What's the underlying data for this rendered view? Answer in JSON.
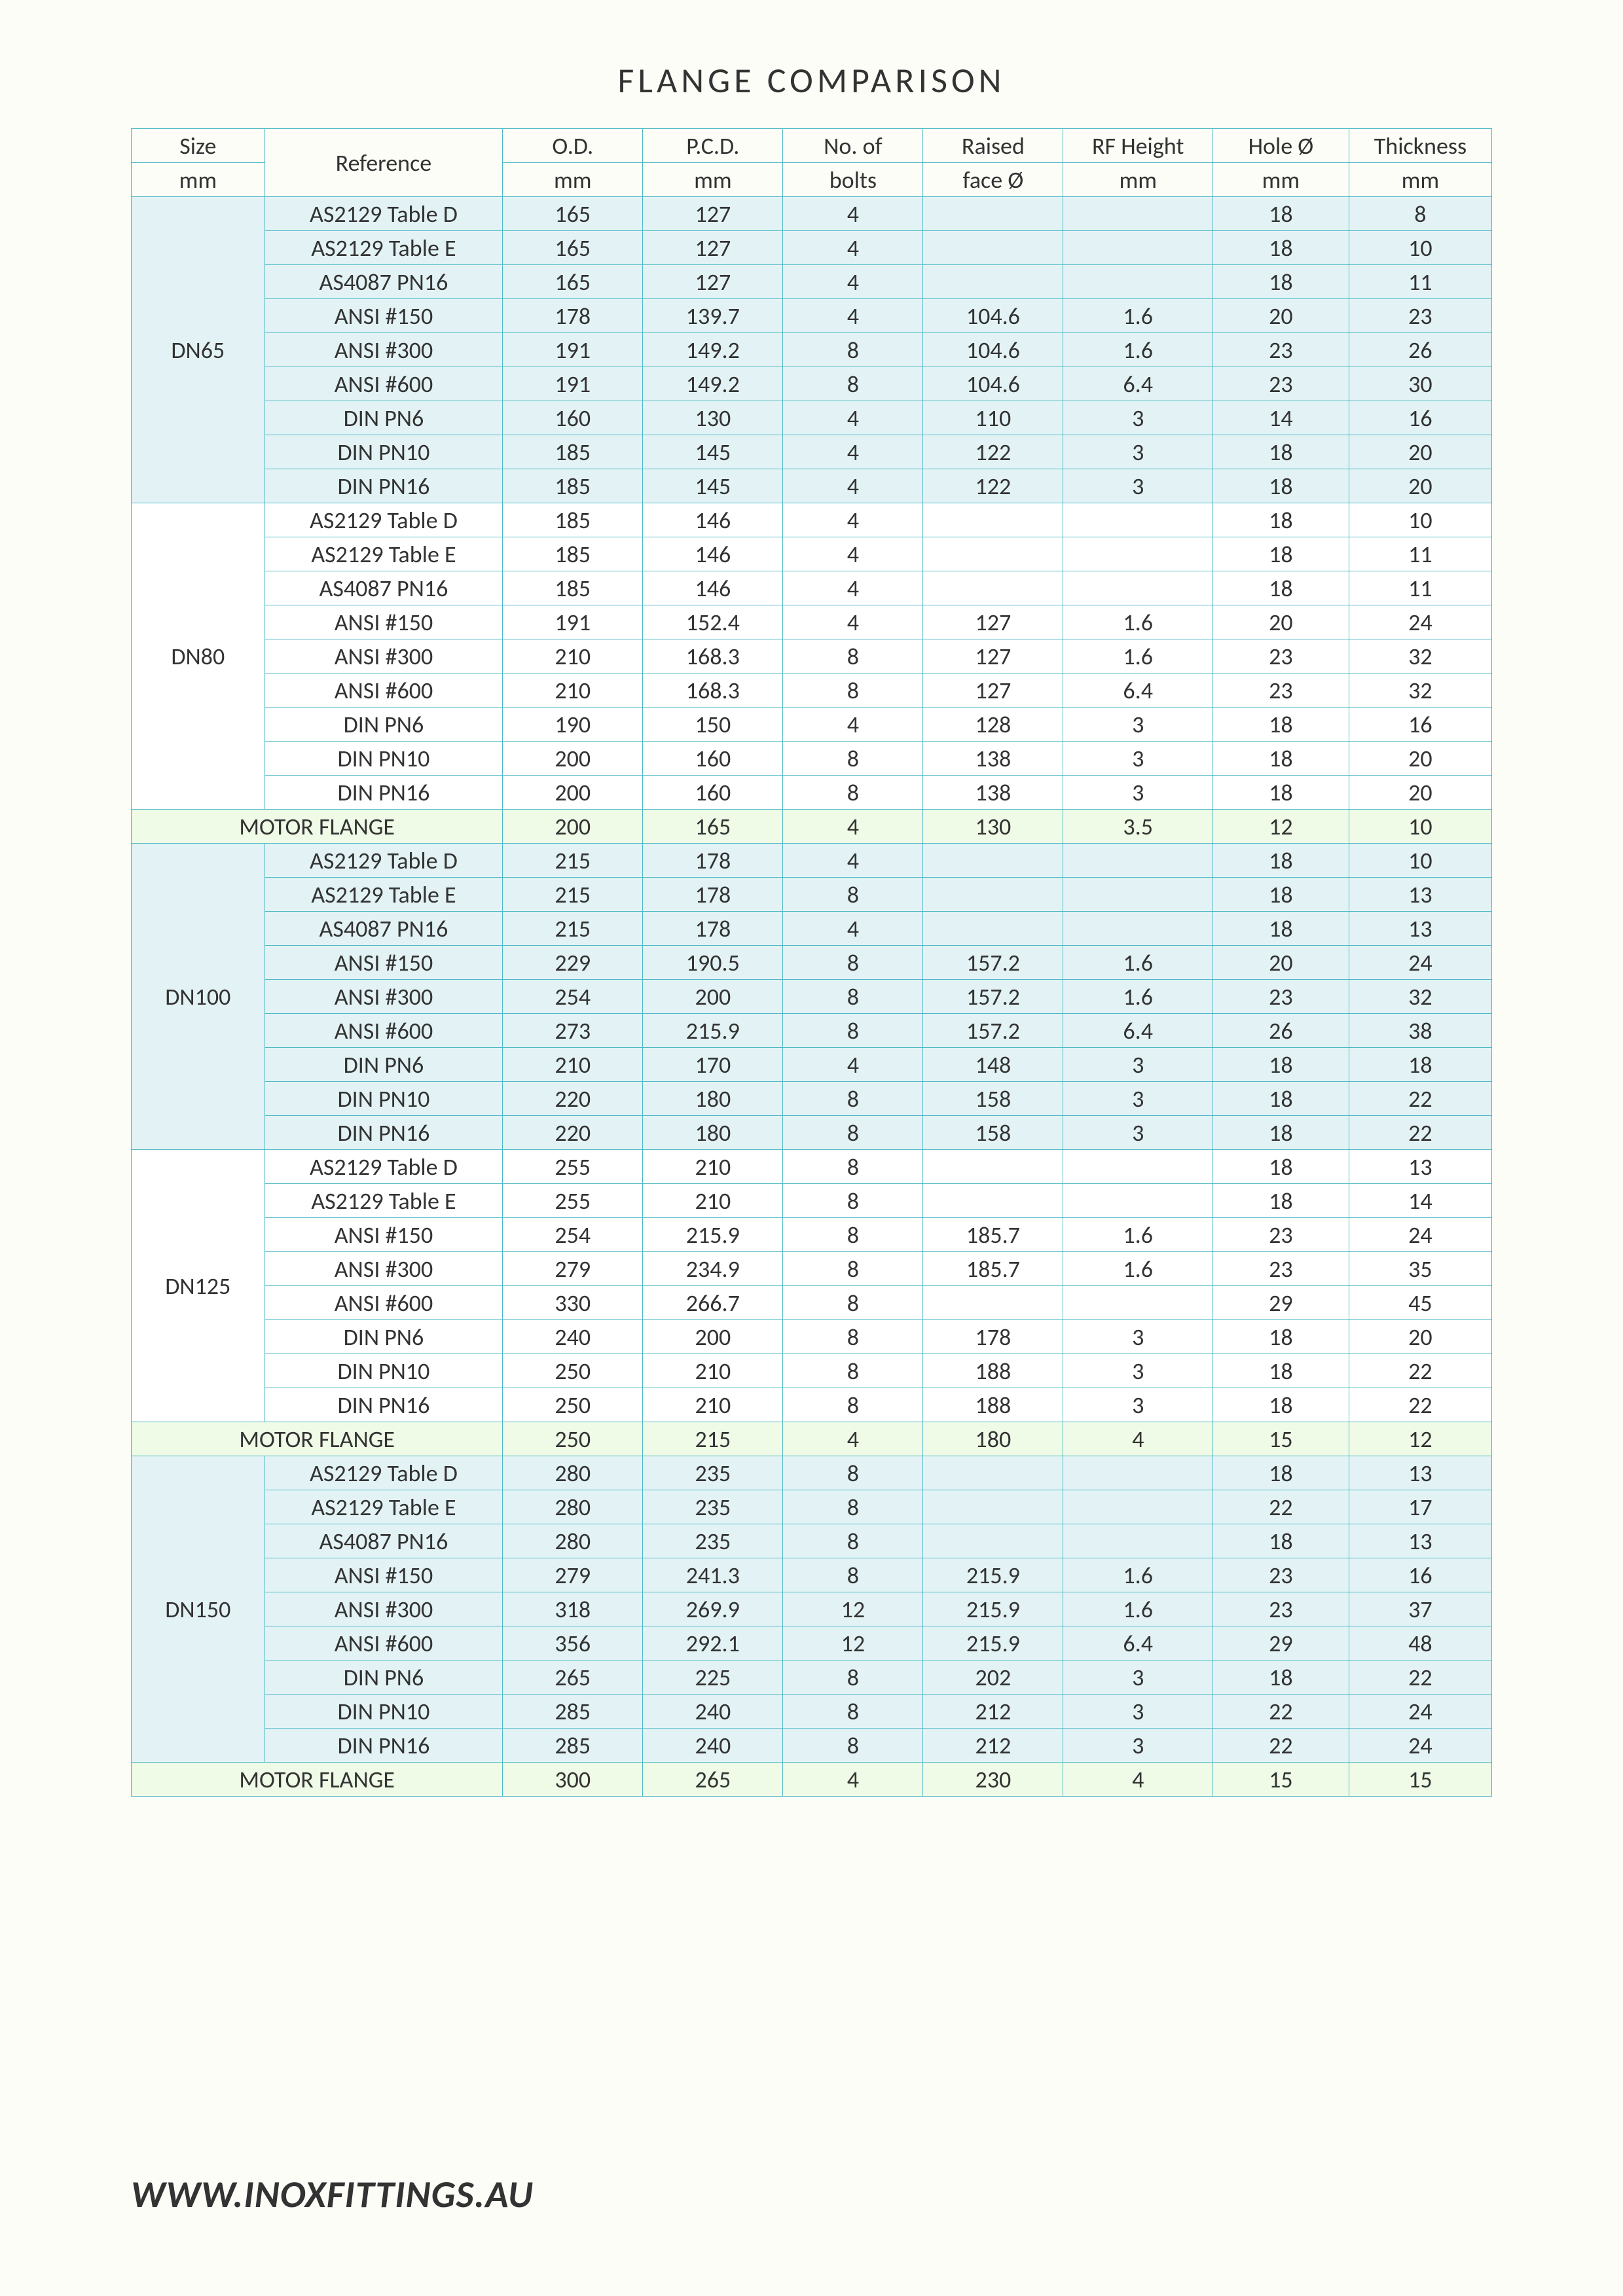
{
  "title": "FLANGE  COMPARISON",
  "footer": "WWW.INOXFITTINGS.AU",
  "colors": {
    "border": "#4db8c7",
    "background": "#fcfdf7",
    "shade_blue": "#e3f3f5",
    "shade_white": "#ffffff",
    "shade_green": "#effbe7",
    "text": "#333333"
  },
  "header": {
    "size1": "Size",
    "size2": "mm",
    "ref": "Reference",
    "od1": "O.D.",
    "od2": "mm",
    "pcd1": "P.C.D.",
    "pcd2": "mm",
    "bolts1": "No. of",
    "bolts2": "bolts",
    "rf1": "Raised",
    "rf2": "face Ø",
    "rfh1": "RF Height",
    "rfh2": "mm",
    "hole1": "Hole Ø",
    "hole2": "mm",
    "thk1": "Thickness",
    "thk2": "mm"
  },
  "groups": [
    {
      "size": "DN65",
      "shade": "blue",
      "rows": [
        {
          "ref": "AS2129 Table D",
          "od": "165",
          "pcd": "127",
          "bolts": "4",
          "rf": "",
          "rfh": "",
          "hole": "18",
          "thk": "8"
        },
        {
          "ref": "AS2129 Table E",
          "od": "165",
          "pcd": "127",
          "bolts": "4",
          "rf": "",
          "rfh": "",
          "hole": "18",
          "thk": "10"
        },
        {
          "ref": "AS4087 PN16",
          "od": "165",
          "pcd": "127",
          "bolts": "4",
          "rf": "",
          "rfh": "",
          "hole": "18",
          "thk": "11"
        },
        {
          "ref": "ANSI #150",
          "od": "178",
          "pcd": "139.7",
          "bolts": "4",
          "rf": "104.6",
          "rfh": "1.6",
          "hole": "20",
          "thk": "23"
        },
        {
          "ref": "ANSI #300",
          "od": "191",
          "pcd": "149.2",
          "bolts": "8",
          "rf": "104.6",
          "rfh": "1.6",
          "hole": "23",
          "thk": "26"
        },
        {
          "ref": "ANSI #600",
          "od": "191",
          "pcd": "149.2",
          "bolts": "8",
          "rf": "104.6",
          "rfh": "6.4",
          "hole": "23",
          "thk": "30"
        },
        {
          "ref": "DIN PN6",
          "od": "160",
          "pcd": "130",
          "bolts": "4",
          "rf": "110",
          "rfh": "3",
          "hole": "14",
          "thk": "16"
        },
        {
          "ref": "DIN PN10",
          "od": "185",
          "pcd": "145",
          "bolts": "4",
          "rf": "122",
          "rfh": "3",
          "hole": "18",
          "thk": "20"
        },
        {
          "ref": "DIN PN16",
          "od": "185",
          "pcd": "145",
          "bolts": "4",
          "rf": "122",
          "rfh": "3",
          "hole": "18",
          "thk": "20"
        }
      ]
    },
    {
      "size": "DN80",
      "shade": "white",
      "rows": [
        {
          "ref": "AS2129 Table D",
          "od": "185",
          "pcd": "146",
          "bolts": "4",
          "rf": "",
          "rfh": "",
          "hole": "18",
          "thk": "10"
        },
        {
          "ref": "AS2129 Table E",
          "od": "185",
          "pcd": "146",
          "bolts": "4",
          "rf": "",
          "rfh": "",
          "hole": "18",
          "thk": "11"
        },
        {
          "ref": "AS4087 PN16",
          "od": "185",
          "pcd": "146",
          "bolts": "4",
          "rf": "",
          "rfh": "",
          "hole": "18",
          "thk": "11"
        },
        {
          "ref": "ANSI #150",
          "od": "191",
          "pcd": "152.4",
          "bolts": "4",
          "rf": "127",
          "rfh": "1.6",
          "hole": "20",
          "thk": "24"
        },
        {
          "ref": "ANSI #300",
          "od": "210",
          "pcd": "168.3",
          "bolts": "8",
          "rf": "127",
          "rfh": "1.6",
          "hole": "23",
          "thk": "32"
        },
        {
          "ref": "ANSI #600",
          "od": "210",
          "pcd": "168.3",
          "bolts": "8",
          "rf": "127",
          "rfh": "6.4",
          "hole": "23",
          "thk": "32"
        },
        {
          "ref": "DIN PN6",
          "od": "190",
          "pcd": "150",
          "bolts": "4",
          "rf": "128",
          "rfh": "3",
          "hole": "18",
          "thk": "16"
        },
        {
          "ref": "DIN PN10",
          "od": "200",
          "pcd": "160",
          "bolts": "8",
          "rf": "138",
          "rfh": "3",
          "hole": "18",
          "thk": "20"
        },
        {
          "ref": "DIN PN16",
          "od": "200",
          "pcd": "160",
          "bolts": "8",
          "rf": "138",
          "rfh": "3",
          "hole": "18",
          "thk": "20"
        }
      ]
    },
    {
      "motor": true,
      "shade": "green",
      "label": "MOTOR  FLANGE",
      "row": {
        "od": "200",
        "pcd": "165",
        "bolts": "4",
        "rf": "130",
        "rfh": "3.5",
        "hole": "12",
        "thk": "10"
      }
    },
    {
      "size": "DN100",
      "shade": "blue",
      "rows": [
        {
          "ref": "AS2129 Table D",
          "od": "215",
          "pcd": "178",
          "bolts": "4",
          "rf": "",
          "rfh": "",
          "hole": "18",
          "thk": "10"
        },
        {
          "ref": "AS2129 Table E",
          "od": "215",
          "pcd": "178",
          "bolts": "8",
          "rf": "",
          "rfh": "",
          "hole": "18",
          "thk": "13"
        },
        {
          "ref": "AS4087 PN16",
          "od": "215",
          "pcd": "178",
          "bolts": "4",
          "rf": "",
          "rfh": "",
          "hole": "18",
          "thk": "13"
        },
        {
          "ref": "ANSI #150",
          "od": "229",
          "pcd": "190.5",
          "bolts": "8",
          "rf": "157.2",
          "rfh": "1.6",
          "hole": "20",
          "thk": "24"
        },
        {
          "ref": "ANSI #300",
          "od": "254",
          "pcd": "200",
          "bolts": "8",
          "rf": "157.2",
          "rfh": "1.6",
          "hole": "23",
          "thk": "32"
        },
        {
          "ref": "ANSI #600",
          "od": "273",
          "pcd": "215.9",
          "bolts": "8",
          "rf": "157.2",
          "rfh": "6.4",
          "hole": "26",
          "thk": "38"
        },
        {
          "ref": "DIN PN6",
          "od": "210",
          "pcd": "170",
          "bolts": "4",
          "rf": "148",
          "rfh": "3",
          "hole": "18",
          "thk": "18"
        },
        {
          "ref": "DIN PN10",
          "od": "220",
          "pcd": "180",
          "bolts": "8",
          "rf": "158",
          "rfh": "3",
          "hole": "18",
          "thk": "22"
        },
        {
          "ref": "DIN PN16",
          "od": "220",
          "pcd": "180",
          "bolts": "8",
          "rf": "158",
          "rfh": "3",
          "hole": "18",
          "thk": "22"
        }
      ]
    },
    {
      "size": "DN125",
      "shade": "white",
      "rows": [
        {
          "ref": "AS2129 Table D",
          "od": "255",
          "pcd": "210",
          "bolts": "8",
          "rf": "",
          "rfh": "",
          "hole": "18",
          "thk": "13"
        },
        {
          "ref": "AS2129 Table E",
          "od": "255",
          "pcd": "210",
          "bolts": "8",
          "rf": "",
          "rfh": "",
          "hole": "18",
          "thk": "14"
        },
        {
          "ref": "ANSI #150",
          "od": "254",
          "pcd": "215.9",
          "bolts": "8",
          "rf": "185.7",
          "rfh": "1.6",
          "hole": "23",
          "thk": "24"
        },
        {
          "ref": "ANSI #300",
          "od": "279",
          "pcd": "234.9",
          "bolts": "8",
          "rf": "185.7",
          "rfh": "1.6",
          "hole": "23",
          "thk": "35"
        },
        {
          "ref": "ANSI #600",
          "od": "330",
          "pcd": "266.7",
          "bolts": "8",
          "rf": "",
          "rfh": "",
          "hole": "29",
          "thk": "45"
        },
        {
          "ref": "DIN PN6",
          "od": "240",
          "pcd": "200",
          "bolts": "8",
          "rf": "178",
          "rfh": "3",
          "hole": "18",
          "thk": "20"
        },
        {
          "ref": "DIN PN10",
          "od": "250",
          "pcd": "210",
          "bolts": "8",
          "rf": "188",
          "rfh": "3",
          "hole": "18",
          "thk": "22"
        },
        {
          "ref": "DIN PN16",
          "od": "250",
          "pcd": "210",
          "bolts": "8",
          "rf": "188",
          "rfh": "3",
          "hole": "18",
          "thk": "22"
        }
      ]
    },
    {
      "motor": true,
      "shade": "green",
      "label": "MOTOR  FLANGE",
      "row": {
        "od": "250",
        "pcd": "215",
        "bolts": "4",
        "rf": "180",
        "rfh": "4",
        "hole": "15",
        "thk": "12"
      }
    },
    {
      "size": "DN150",
      "shade": "blue",
      "rows": [
        {
          "ref": "AS2129 Table D",
          "od": "280",
          "pcd": "235",
          "bolts": "8",
          "rf": "",
          "rfh": "",
          "hole": "18",
          "thk": "13"
        },
        {
          "ref": "AS2129 Table E",
          "od": "280",
          "pcd": "235",
          "bolts": "8",
          "rf": "",
          "rfh": "",
          "hole": "22",
          "thk": "17"
        },
        {
          "ref": "AS4087 PN16",
          "od": "280",
          "pcd": "235",
          "bolts": "8",
          "rf": "",
          "rfh": "",
          "hole": "18",
          "thk": "13"
        },
        {
          "ref": "ANSI #150",
          "od": "279",
          "pcd": "241.3",
          "bolts": "8",
          "rf": "215.9",
          "rfh": "1.6",
          "hole": "23",
          "thk": "16"
        },
        {
          "ref": "ANSI #300",
          "od": "318",
          "pcd": "269.9",
          "bolts": "12",
          "rf": "215.9",
          "rfh": "1.6",
          "hole": "23",
          "thk": "37"
        },
        {
          "ref": "ANSI #600",
          "od": "356",
          "pcd": "292.1",
          "bolts": "12",
          "rf": "215.9",
          "rfh": "6.4",
          "hole": "29",
          "thk": "48"
        },
        {
          "ref": "DIN PN6",
          "od": "265",
          "pcd": "225",
          "bolts": "8",
          "rf": "202",
          "rfh": "3",
          "hole": "18",
          "thk": "22"
        },
        {
          "ref": "DIN PN10",
          "od": "285",
          "pcd": "240",
          "bolts": "8",
          "rf": "212",
          "rfh": "3",
          "hole": "22",
          "thk": "24"
        },
        {
          "ref": "DIN PN16",
          "od": "285",
          "pcd": "240",
          "bolts": "8",
          "rf": "212",
          "rfh": "3",
          "hole": "22",
          "thk": "24"
        }
      ]
    },
    {
      "motor": true,
      "shade": "green",
      "label": "MOTOR  FLANGE",
      "row": {
        "od": "300",
        "pcd": "265",
        "bolts": "4",
        "rf": "230",
        "rfh": "4",
        "hole": "15",
        "thk": "15"
      }
    }
  ]
}
